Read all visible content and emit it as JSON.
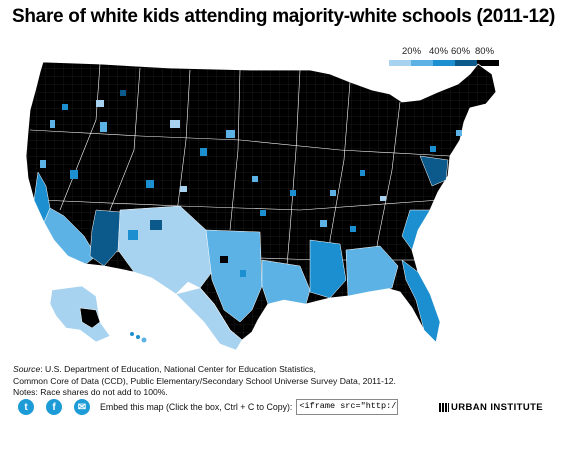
{
  "title": "Share of white kids attending majority-white schools (2011-12)",
  "legend": {
    "labels": [
      "20%",
      "40%",
      "60%",
      "80%"
    ],
    "colors": [
      "#a8d3f0",
      "#5cb2e4",
      "#1b8fd0",
      "#0c5a8c",
      "#000000"
    ]
  },
  "palette": {
    "lightest": "#a8d3f0",
    "light": "#5cb2e4",
    "mid": "#1b8fd0",
    "dark": "#0c5a8c",
    "darkest": "#000000",
    "border": "#ffffff"
  },
  "source": {
    "label": "Source",
    "line1": ": U.S. Department of Education, National Center for Education Statistics,",
    "line2": "Common Core of Data (CCD), Public Elementary/Secondary School Universe Survey Data, 2011-12.",
    "line3": "Notes: Race shares do not add to 100%."
  },
  "share": {
    "twitter_glyph": "t",
    "facebook_glyph": "f",
    "email_glyph": "✉",
    "embed_label": "Embed this map (Click the box, Ctrl + C to Copy):",
    "embed_value": "<iframe src=\"http://"
  },
  "brand": "URBAN INSTITUTE",
  "icons": [
    "twitter-icon",
    "facebook-icon",
    "email-icon",
    "urban-institute-logo"
  ]
}
